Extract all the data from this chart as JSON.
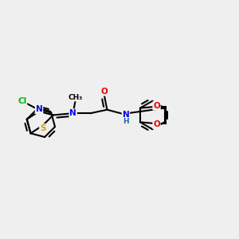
{
  "background_color": "#efefef",
  "atom_colors": {
    "C": "#000000",
    "N": "#0000ee",
    "O": "#ee0000",
    "S": "#ccaa00",
    "Cl": "#00bb00",
    "NH": "#2266aa"
  },
  "bond_color": "#000000",
  "bond_width": 1.5,
  "figsize": [
    3.0,
    3.0
  ],
  "dpi": 100
}
